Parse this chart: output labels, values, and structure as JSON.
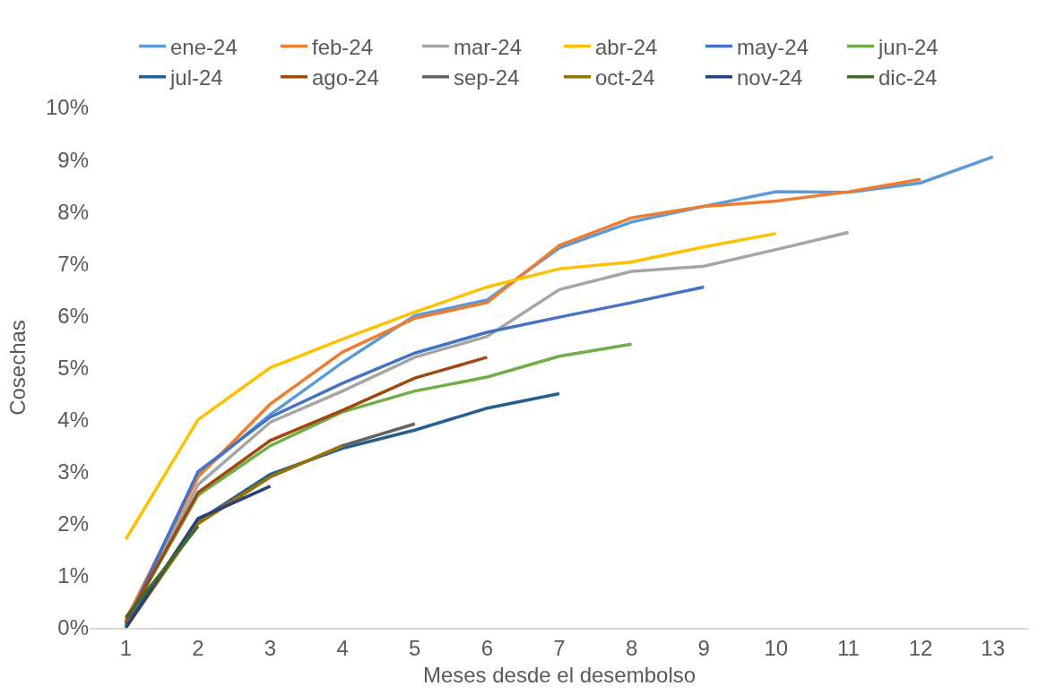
{
  "chart_data": {
    "type": "line",
    "xlabel": "Meses desde el desembolso",
    "ylabel": "Cosechas",
    "x": [
      1,
      2,
      3,
      4,
      5,
      6,
      7,
      8,
      9,
      10,
      11,
      12,
      13
    ],
    "xlim": [
      0.5,
      13.5
    ],
    "xticks": [
      1,
      2,
      3,
      4,
      5,
      6,
      7,
      8,
      9,
      10,
      11,
      12,
      13
    ],
    "ylim": [
      0,
      10
    ],
    "yticks": [
      {
        "value": 0,
        "label": "0%"
      },
      {
        "value": 1,
        "label": "1%"
      },
      {
        "value": 2,
        "label": "2%"
      },
      {
        "value": 3,
        "label": "3%"
      },
      {
        "value": 4,
        "label": "4%"
      },
      {
        "value": 5,
        "label": "5%"
      },
      {
        "value": 6,
        "label": "6%"
      },
      {
        "value": 7,
        "label": "7%"
      },
      {
        "value": 8,
        "label": "8%"
      },
      {
        "value": 9,
        "label": "9%"
      },
      {
        "value": 10,
        "label": "10%"
      }
    ],
    "grid": false,
    "legend": "top",
    "marker": "none",
    "line_style": "solid",
    "series": [
      {
        "name": "ene-24",
        "color": "#5b9bd5",
        "values": [
          0.1,
          2.95,
          4.1,
          5.1,
          6.0,
          6.3,
          7.3,
          7.8,
          8.1,
          8.38,
          8.37,
          8.55,
          9.05
        ]
      },
      {
        "name": "feb-24",
        "color": "#ed7d31",
        "values": [
          0.15,
          2.9,
          4.3,
          5.3,
          5.95,
          6.25,
          7.35,
          7.88,
          8.1,
          8.2,
          8.38,
          8.62,
          null
        ]
      },
      {
        "name": "mar-24",
        "color": "#a5a5a5",
        "values": [
          0.1,
          2.75,
          3.95,
          4.55,
          5.2,
          5.6,
          6.5,
          6.85,
          6.95,
          7.27,
          7.6,
          null,
          null
        ]
      },
      {
        "name": "abr-24",
        "color": "#ffc000",
        "values": [
          1.7,
          4.0,
          5.0,
          5.55,
          6.07,
          6.55,
          6.9,
          7.03,
          7.32,
          7.58,
          null,
          null,
          null
        ]
      },
      {
        "name": "may-24",
        "color": "#4472c4",
        "values": [
          0.05,
          3.0,
          4.05,
          4.7,
          5.28,
          5.68,
          5.97,
          6.25,
          6.55,
          null,
          null,
          null,
          null
        ]
      },
      {
        "name": "jun-24",
        "color": "#70ad47",
        "values": [
          0.1,
          2.55,
          3.5,
          4.15,
          4.55,
          4.82,
          5.22,
          5.45,
          null,
          null,
          null,
          null,
          null
        ]
      },
      {
        "name": "jul-24",
        "color": "#255e91",
        "values": [
          0.05,
          2.05,
          2.95,
          3.45,
          3.8,
          4.22,
          4.5,
          null,
          null,
          null,
          null,
          null,
          null
        ]
      },
      {
        "name": "ago-24",
        "color": "#9e480e",
        "values": [
          0.1,
          2.6,
          3.6,
          4.18,
          4.8,
          5.2,
          null,
          null,
          null,
          null,
          null,
          null,
          null
        ]
      },
      {
        "name": "sep-24",
        "color": "#636363",
        "values": [
          0.05,
          2.05,
          2.9,
          3.5,
          3.92,
          null,
          null,
          null,
          null,
          null,
          null,
          null,
          null
        ]
      },
      {
        "name": "oct-24",
        "color": "#997300",
        "values": [
          0.0,
          2.0,
          2.9,
          3.5,
          null,
          null,
          null,
          null,
          null,
          null,
          null,
          null,
          null
        ]
      },
      {
        "name": "nov-24",
        "color": "#264478",
        "values": [
          0.0,
          2.1,
          2.72,
          null,
          null,
          null,
          null,
          null,
          null,
          null,
          null,
          null,
          null
        ]
      },
      {
        "name": "dic-24",
        "color": "#43682b",
        "values": [
          0.2,
          1.95,
          null,
          null,
          null,
          null,
          null,
          null,
          null,
          null,
          null,
          null,
          null
        ]
      }
    ]
  }
}
